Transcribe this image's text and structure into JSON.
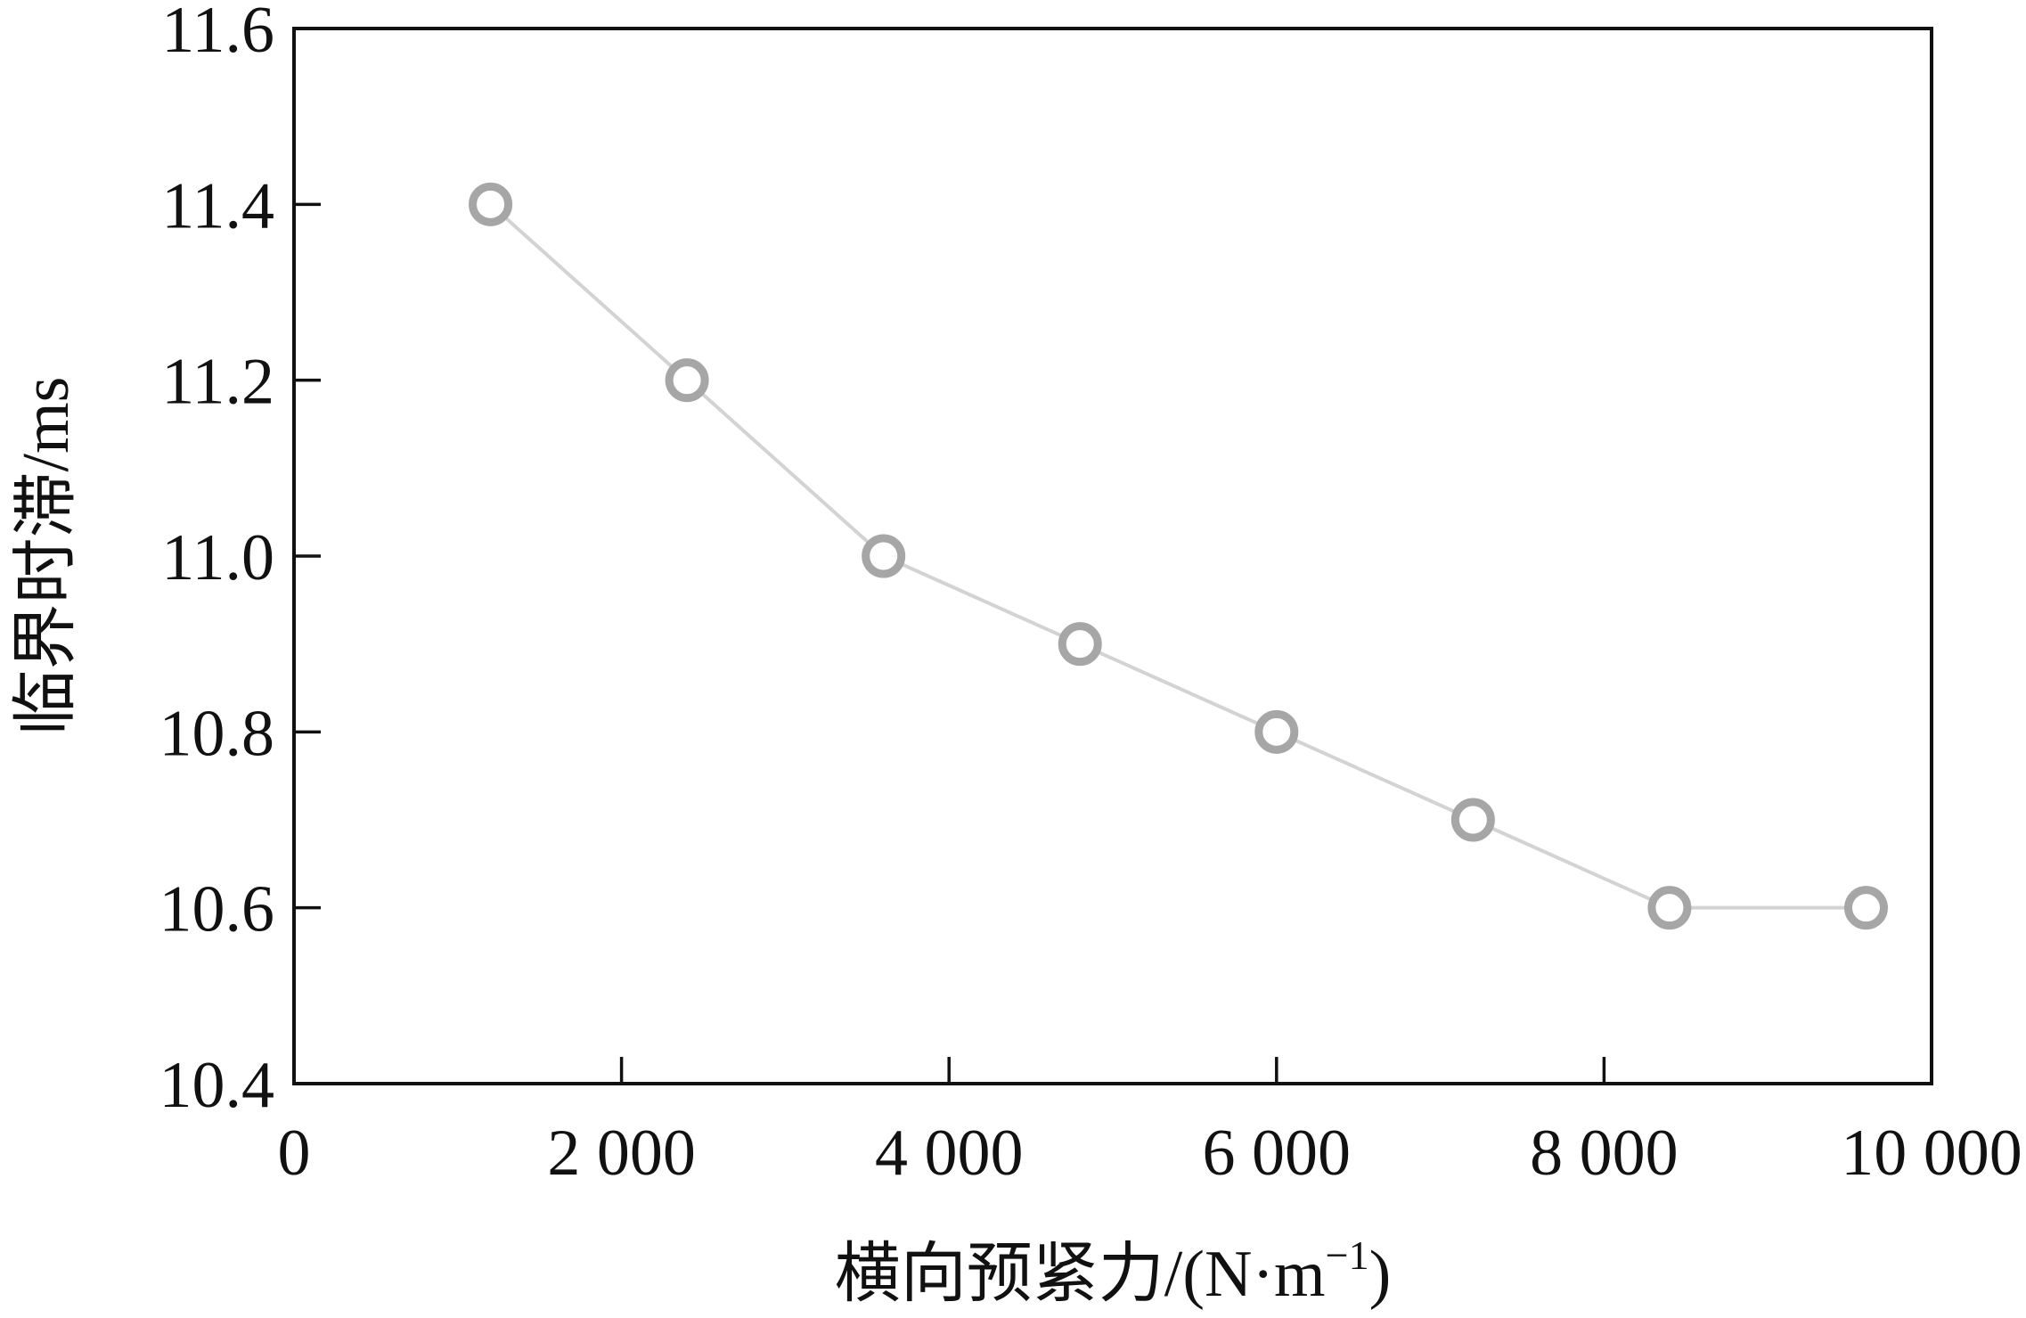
{
  "chart_data": {
    "type": "line",
    "title": "",
    "xlabel": "横向预紧力/(N·m",
    "xlabel_sup": "−1",
    "xlabel_tail": ")",
    "ylabel": "临界时滞/ms",
    "xlim": [
      0,
      10000
    ],
    "ylim": [
      10.4,
      11.6
    ],
    "x_ticks": [
      0,
      2000,
      4000,
      6000,
      8000,
      10000
    ],
    "x_tick_labels": [
      "0",
      "2 000",
      "4 000",
      "6 000",
      "8 000",
      "10 000"
    ],
    "y_ticks": [
      10.4,
      10.6,
      10.8,
      11.0,
      11.2,
      11.4,
      11.6
    ],
    "y_tick_labels": [
      "10.4",
      "10.6",
      "10.8",
      "11.0",
      "11.2",
      "11.4",
      "11.6"
    ],
    "grid": false,
    "legend": "none",
    "series": [
      {
        "x": [
          1200,
          2400,
          3600,
          4800,
          6000,
          7200,
          8400,
          9600
        ],
        "values": [
          11.4,
          11.2,
          11.0,
          10.9,
          10.8,
          10.7,
          10.6,
          10.6
        ],
        "line_color": "#d3d3d3",
        "marker_color": "#a6a6a6",
        "marker": "hollow-circle"
      }
    ]
  }
}
